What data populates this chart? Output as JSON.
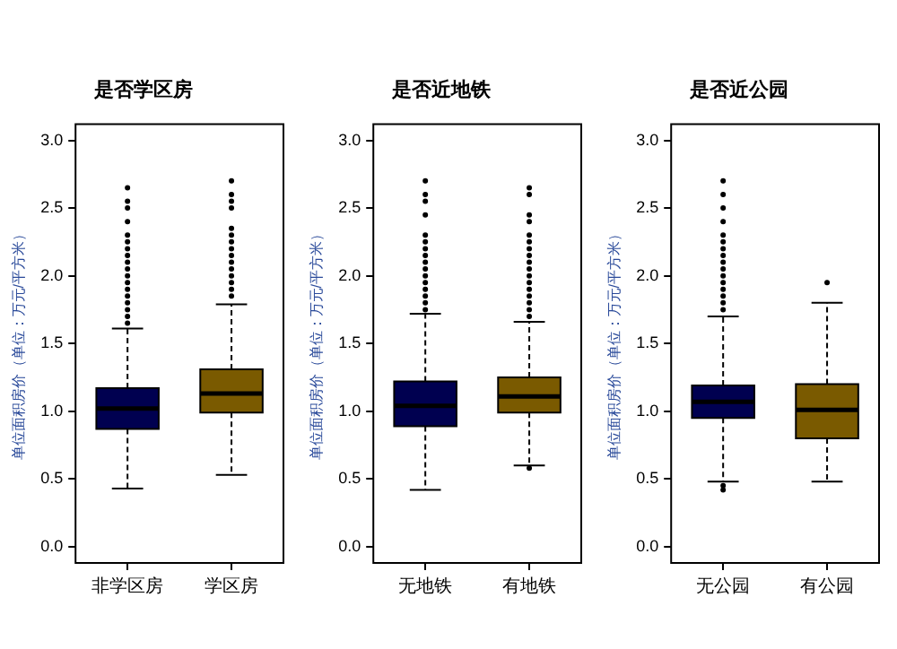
{
  "chart_data": [
    {
      "type": "box",
      "title": "是否学区房",
      "ylabel": "单位面积房价（单位：万元/平方米）",
      "categories": [
        "非学区房",
        "学区房"
      ],
      "colors": [
        "#000050",
        "#7a5a00"
      ],
      "ylim": [
        -0.12,
        3.12
      ],
      "yticks": [
        {
          "value": 0,
          "label": "0.0"
        },
        {
          "value": 0.5,
          "label": "0.5"
        },
        {
          "value": 1,
          "label": "1.0"
        },
        {
          "value": 1.5,
          "label": "1.5"
        },
        {
          "value": 2,
          "label": "2.0"
        },
        {
          "value": 2.5,
          "label": "2.5"
        },
        {
          "value": 3,
          "label": "3.0"
        }
      ],
      "grid": false,
      "marker": "circle",
      "boxes": [
        {
          "low": 0.43,
          "q1": 0.87,
          "median": 1.02,
          "q3": 1.17,
          "high": 1.61,
          "outliers": [
            1.65,
            1.7,
            1.75,
            1.8,
            1.85,
            1.9,
            1.95,
            2.0,
            2.05,
            2.1,
            2.15,
            2.2,
            2.25,
            2.3,
            2.4,
            2.5,
            2.55,
            2.65
          ]
        },
        {
          "low": 0.53,
          "q1": 0.99,
          "median": 1.13,
          "q3": 1.31,
          "high": 1.79,
          "outliers": [
            1.85,
            1.9,
            1.95,
            2.0,
            2.05,
            2.1,
            2.15,
            2.2,
            2.25,
            2.3,
            2.35,
            2.5,
            2.55,
            2.6,
            2.7
          ]
        }
      ]
    },
    {
      "type": "box",
      "title": "是否近地铁",
      "ylabel": "单位面积房价（单位：万元/平方米）",
      "categories": [
        "无地铁",
        "有地铁"
      ],
      "colors": [
        "#000050",
        "#7a5a00"
      ],
      "ylim": [
        -0.12,
        3.12
      ],
      "yticks": [
        {
          "value": 0,
          "label": "0.0"
        },
        {
          "value": 0.5,
          "label": "0.5"
        },
        {
          "value": 1,
          "label": "1.0"
        },
        {
          "value": 1.5,
          "label": "1.5"
        },
        {
          "value": 2,
          "label": "2.0"
        },
        {
          "value": 2.5,
          "label": "2.5"
        },
        {
          "value": 3,
          "label": "3.0"
        }
      ],
      "grid": false,
      "marker": "circle",
      "boxes": [
        {
          "low": 0.42,
          "q1": 0.89,
          "median": 1.04,
          "q3": 1.22,
          "high": 1.72,
          "outliers": [
            1.75,
            1.8,
            1.85,
            1.9,
            1.95,
            2.0,
            2.05,
            2.1,
            2.15,
            2.2,
            2.25,
            2.3,
            2.45,
            2.55,
            2.6,
            2.7
          ]
        },
        {
          "low": 0.6,
          "q1": 0.99,
          "median": 1.11,
          "q3": 1.25,
          "high": 1.66,
          "outliers": [
            0.58,
            1.7,
            1.75,
            1.8,
            1.85,
            1.9,
            1.95,
            2.0,
            2.05,
            2.1,
            2.15,
            2.2,
            2.25,
            2.3,
            2.4,
            2.45,
            2.6,
            2.65
          ]
        }
      ]
    },
    {
      "type": "box",
      "title": "是否近公园",
      "ylabel": "单位面积房价（单位：万元/平方米）",
      "categories": [
        "无公园",
        "有公园"
      ],
      "colors": [
        "#000050",
        "#7a5a00"
      ],
      "ylim": [
        -0.12,
        3.12
      ],
      "yticks": [
        {
          "value": 0,
          "label": "0.0"
        },
        {
          "value": 0.5,
          "label": "0.5"
        },
        {
          "value": 1,
          "label": "1.0"
        },
        {
          "value": 1.5,
          "label": "1.5"
        },
        {
          "value": 2,
          "label": "2.0"
        },
        {
          "value": 2.5,
          "label": "2.5"
        },
        {
          "value": 3,
          "label": "3.0"
        }
      ],
      "grid": false,
      "marker": "circle",
      "boxes": [
        {
          "low": 0.48,
          "q1": 0.95,
          "median": 1.07,
          "q3": 1.19,
          "high": 1.7,
          "outliers": [
            0.42,
            0.45,
            1.75,
            1.8,
            1.85,
            1.9,
            1.95,
            2.0,
            2.05,
            2.1,
            2.15,
            2.2,
            2.25,
            2.3,
            2.4,
            2.5,
            2.6,
            2.7
          ]
        },
        {
          "low": 0.48,
          "q1": 0.8,
          "median": 1.01,
          "q3": 1.2,
          "high": 1.8,
          "outliers": [
            1.95
          ]
        }
      ]
    }
  ]
}
